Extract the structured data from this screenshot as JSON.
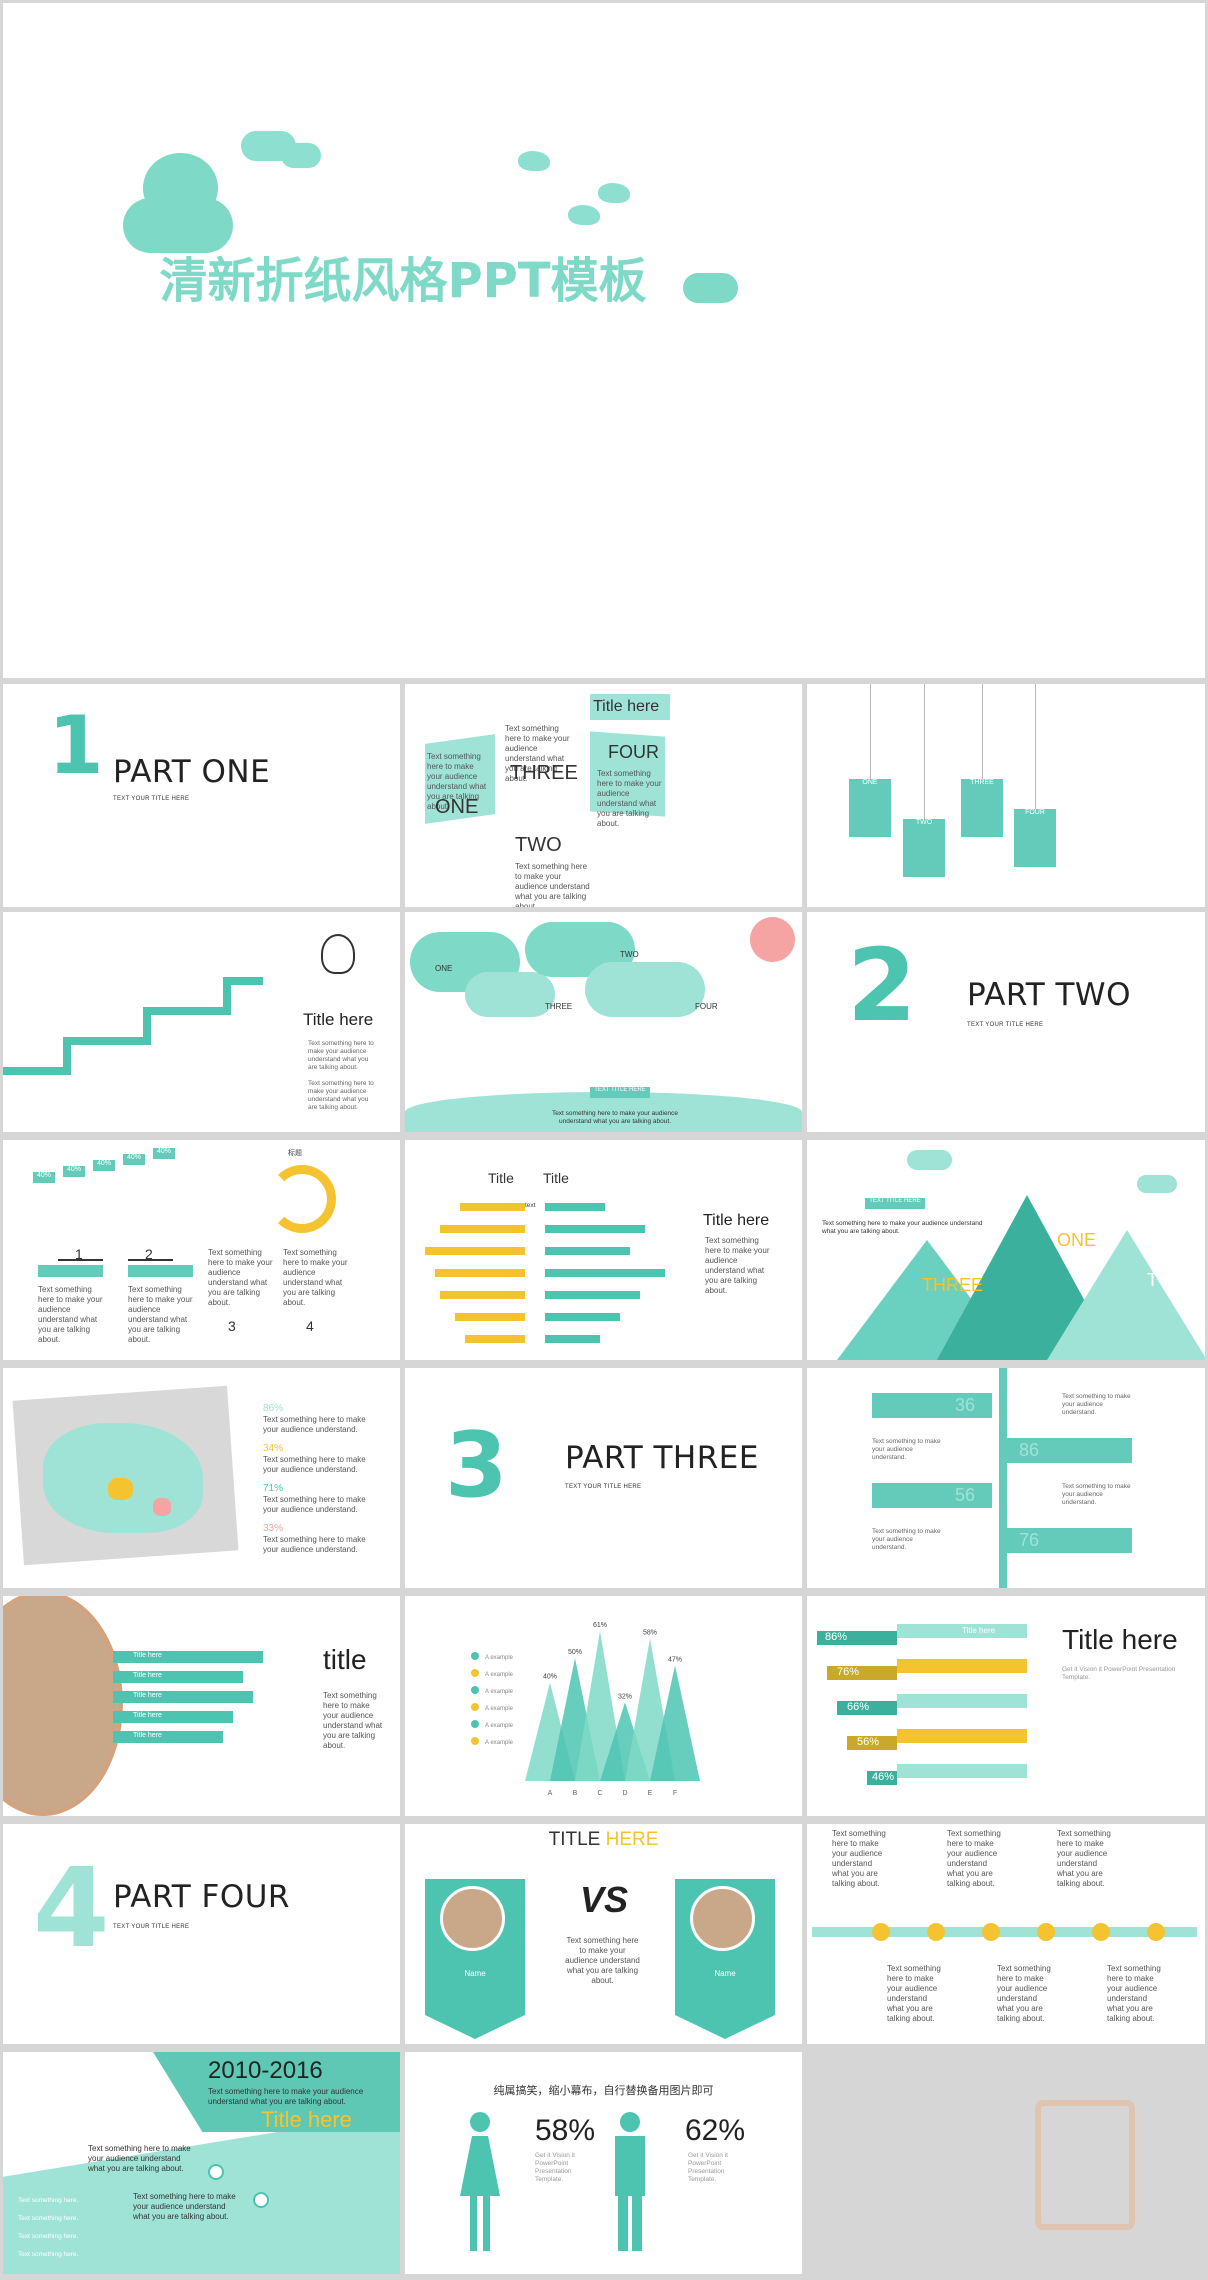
{
  "cover": {
    "title": "清新折纸风格PPT模板"
  },
  "colors": {
    "teal": "#4cc4b0",
    "yellow": "#f5c330",
    "pink": "#f5a3a3",
    "gray": "#d6d6d6"
  },
  "parts": [
    {
      "num": "1",
      "title": "PART ONE",
      "sub": "TEXT YOUR TITLE HERE"
    },
    {
      "num": "2",
      "title": "PART TWO",
      "sub": "TEXT YOUR TITLE HERE"
    },
    {
      "num": "3",
      "title": "PART THREE",
      "sub": "TEXT YOUR TITLE HERE"
    },
    {
      "num": "4",
      "title": "PART FOUR",
      "sub": "TEXT YOUR TITLE HERE"
    }
  ],
  "s2": {
    "title_here": "Title here",
    "one": "ONE",
    "two": "TWO",
    "three": "THREE",
    "four": "FOUR",
    "text": "Text something here to make your audience understand what you are talking about."
  },
  "s3": {
    "tags": [
      "ONE",
      "TWO",
      "THREE",
      "FOUR"
    ]
  },
  "s4": {
    "title": "Title here",
    "text": "Text something here to make your audience understand what you are talking about."
  },
  "s5": {
    "labels": [
      "ONE",
      "TWO",
      "THREE",
      "FOUR"
    ],
    "banner": "TEXT TITLE HERE",
    "text": "Text something here to make your audience understand what you are talking about."
  },
  "s7": {
    "pcts": [
      "40%",
      "40%",
      "40%",
      "40%",
      "40%"
    ],
    "nums": [
      "1",
      "2",
      "3",
      "4"
    ],
    "label": "标题",
    "text": "Text something here to make your audience understand what you are talking about."
  },
  "s8": {
    "col1": "Title",
    "col2": "Title",
    "row_label": "text",
    "title": "Title here",
    "text": "Text something here to make your audience understand what you are talking about."
  },
  "s9": {
    "banner": "TEXT TITLE HERE",
    "one": "ONE",
    "two": "TWO",
    "three": "THREE",
    "text": "Text something here to make your audience understand what you are talking about."
  },
  "s10": {
    "items": [
      {
        "pct": "86%",
        "text": "Text something here to make your audience understand."
      },
      {
        "pct": "34%",
        "text": "Text something here to make your audience understand."
      },
      {
        "pct": "71%",
        "text": "Text something here to make your audience understand."
      },
      {
        "pct": "33%",
        "text": "Text something here to make your audience understand."
      }
    ]
  },
  "s12": {
    "nums": [
      "36",
      "86",
      "56",
      "76"
    ],
    "text": "Text something to make your audience understand."
  },
  "s13": {
    "bars": [
      "Title here",
      "Title here",
      "Title here",
      "Title here",
      "Title here"
    ],
    "title": "title",
    "text": "Text something here to make your audience understand what you are talking about."
  },
  "s14": {
    "labels": [
      "A",
      "B",
      "C",
      "D",
      "E",
      "F"
    ],
    "values": [
      40,
      50,
      61,
      32,
      58,
      47
    ],
    "value_labels": [
      "40%",
      "50%",
      "61%",
      "32%",
      "58%",
      "47%"
    ],
    "legend": "A example"
  },
  "s15": {
    "pcts": [
      "86%",
      "76%",
      "66%",
      "56%",
      "46%"
    ],
    "bar_label": "Title here",
    "title": "Title here",
    "text": "Get it Vision it PowerPoint Presentation Template."
  },
  "s17": {
    "title_a": "TITLE ",
    "title_b": "HERE",
    "vs": "VS",
    "name": "Name",
    "something": "something",
    "text": "Text something here to make your audience understand what you are talking about."
  },
  "s18": {
    "text": "Text something here to make your audience understand what you are talking about."
  },
  "s19": {
    "year": "2010-2016",
    "title": "Title here",
    "text": "Text something here to make your audience understand what you are talking about.",
    "line": "Text something here."
  },
  "s20": {
    "title": "纯属搞笑，缩小幕布，自行替换备用图片即可",
    "pct1": "58%",
    "pct2": "62%",
    "text": "Get it Vision it PowerPoint Presentation Template."
  }
}
